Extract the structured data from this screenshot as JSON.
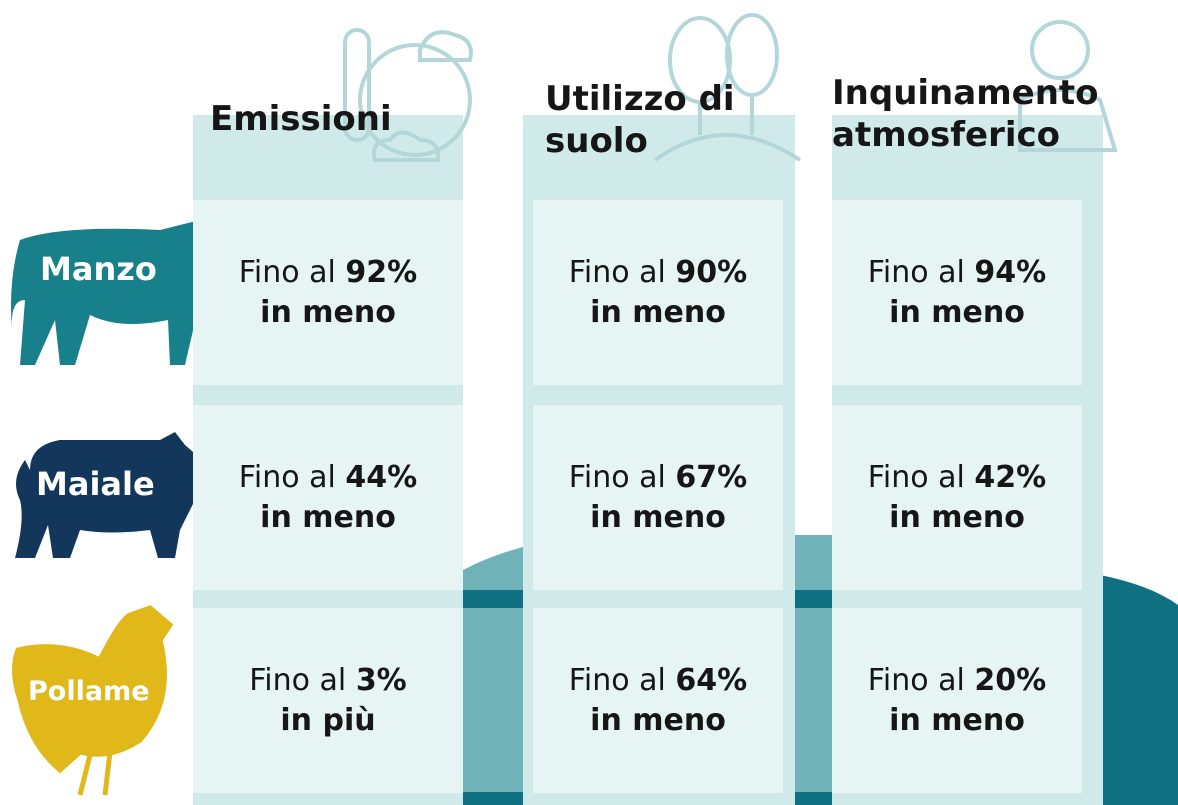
{
  "header": {
    "columns": [
      "Emissioni",
      "Utilizzo di suolo",
      "Inquinamento atmosferico"
    ]
  },
  "rows": [
    {
      "label": "Manzo",
      "cells": [
        {
          "prefix": "Fino al",
          "value": "92%",
          "suffix": "in meno"
        },
        {
          "prefix": "Fino al",
          "value": "90%",
          "suffix": "in meno"
        },
        {
          "prefix": "Fino al",
          "value": "94%",
          "suffix": "in meno"
        }
      ]
    },
    {
      "label": "Maiale",
      "cells": [
        {
          "prefix": "Fino al",
          "value": "44%",
          "suffix": "in meno"
        },
        {
          "prefix": "Fino al",
          "value": "67%",
          "suffix": "in meno"
        },
        {
          "prefix": "Fino al",
          "value": "42%",
          "suffix": "in meno"
        }
      ]
    },
    {
      "label": "Pollame",
      "cells": [
        {
          "prefix": "Fino al",
          "value": "3%",
          "suffix": "in più"
        },
        {
          "prefix": "Fino al",
          "value": "64%",
          "suffix": "in meno"
        },
        {
          "prefix": "Fino al",
          "value": "20%",
          "suffix": "in meno"
        }
      ]
    }
  ]
}
